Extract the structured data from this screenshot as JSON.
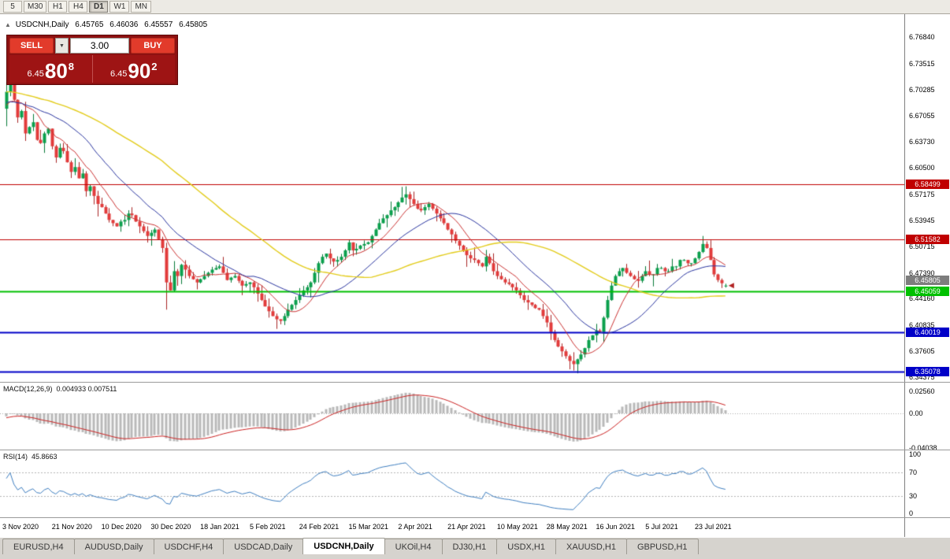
{
  "toolbar": {
    "periods": [
      {
        "label": "5",
        "active": false
      },
      {
        "label": "M30",
        "active": false
      },
      {
        "label": "H1",
        "active": false
      },
      {
        "label": "H4",
        "active": false
      },
      {
        "label": "D1",
        "active": true
      },
      {
        "label": "W1",
        "active": false
      },
      {
        "label": "MN",
        "active": false
      }
    ]
  },
  "chart_header": {
    "collapse_icon": "▲",
    "symbol": "USDCNH,Daily",
    "open": "6.45765",
    "high": "6.46036",
    "low": "6.45557",
    "close": "6.45805"
  },
  "trade_panel": {
    "sell_label": "SELL",
    "buy_label": "BUY",
    "volume": "3.00",
    "dropdown_icon": "▼",
    "sell_price": {
      "small": "6.45",
      "big": "80",
      "sup": "8"
    },
    "buy_price": {
      "small": "6.45",
      "big": "90",
      "sup": "2"
    }
  },
  "indicators_panel": {
    "macd_name": "MACD(12,26,9)",
    "macd_values": "0.004933 0.007511",
    "rsi_name": "RSI(14)",
    "rsi_value": "45.8663"
  },
  "price_axis": {
    "ticks": [
      "6.76840",
      "6.73515",
      "6.70285",
      "6.67055",
      "6.63730",
      "6.60500",
      "6.57175",
      "6.53945",
      "6.50715",
      "6.47390",
      "6.44160",
      "6.40835",
      "6.37605",
      "6.34375"
    ]
  },
  "macd_axis": {
    "ticks": [
      "0.02560",
      "0.00",
      "-0.04038"
    ]
  },
  "rsi_axis": {
    "ticks": [
      "100",
      "70",
      "30",
      "0"
    ]
  },
  "tabs": [
    {
      "label": "EURUSD,H4",
      "active": false
    },
    {
      "label": "AUDUSD,Daily",
      "active": false
    },
    {
      "label": "USDCHF,H4",
      "active": false
    },
    {
      "label": "USDCAD,Daily",
      "active": false
    },
    {
      "label": "USDCNH,Daily",
      "active": true
    },
    {
      "label": "UKOil,H4",
      "active": false
    },
    {
      "label": "DJ30,H1",
      "active": false
    },
    {
      "label": "USDX,H1",
      "active": false
    },
    {
      "label": "XAUUSD,H1",
      "active": false
    },
    {
      "label": "GBPUSD,H1",
      "active": false
    }
  ],
  "chart_data": {
    "type": "candlestick",
    "symbol": "USDCNH",
    "timeframe": "Daily",
    "title": "USDCNH,Daily 6.45765 6.46036 6.45557 6.45805",
    "last_candle": {
      "open": 6.45765,
      "high": 6.46036,
      "low": 6.45557,
      "close": 6.45805
    },
    "bid_price": 6.45805,
    "y_axis_range": [
      6.34375,
      6.7684
    ],
    "x_labels": [
      "3 Nov 2020",
      "21 Nov 2020",
      "10 Dec 2020",
      "30 Dec 2020",
      "18 Jan 2021",
      "5 Feb 2021",
      "24 Feb 2021",
      "15 Mar 2021",
      "2 Apr 2021",
      "21 Apr 2021",
      "10 May 2021",
      "28 May 2021",
      "16 Jun 2021",
      "5 Jul 2021",
      "23 Jul 2021"
    ],
    "x_label_step": 13,
    "closes": [
      6.7,
      6.718,
      6.69,
      6.668,
      6.676,
      6.648,
      6.656,
      6.662,
      6.64,
      6.636,
      6.648,
      6.654,
      6.632,
      6.618,
      6.63,
      6.626,
      6.612,
      6.6,
      6.606,
      6.592,
      6.598,
      6.576,
      6.582,
      6.57,
      6.56,
      6.556,
      6.548,
      6.54,
      6.536,
      6.532,
      6.538,
      6.54,
      6.548,
      6.546,
      6.538,
      6.532,
      6.526,
      6.52,
      6.524,
      6.528,
      6.516,
      6.505,
      6.462,
      6.452,
      6.476,
      6.47,
      6.484,
      6.478,
      6.47,
      6.466,
      6.462,
      6.466,
      6.47,
      6.474,
      6.478,
      6.48,
      6.482,
      6.474,
      6.465,
      6.468,
      6.47,
      6.464,
      6.458,
      6.46,
      6.462,
      6.456,
      6.448,
      6.44,
      6.432,
      6.426,
      6.42,
      6.416,
      6.414,
      6.42,
      6.428,
      6.434,
      6.44,
      6.446,
      6.452,
      6.456,
      6.462,
      6.474,
      6.486,
      6.494,
      6.498,
      6.492,
      6.488,
      6.49,
      6.494,
      6.502,
      6.512,
      6.502,
      6.504,
      6.508,
      6.51,
      6.512,
      6.52,
      6.528,
      6.536,
      6.542,
      6.546,
      6.552,
      6.556,
      6.562,
      6.568,
      6.572,
      6.566,
      6.56,
      6.554,
      6.552,
      6.556,
      6.56,
      6.554,
      6.548,
      6.542,
      6.536,
      6.528,
      6.522,
      6.514,
      6.508,
      6.502,
      6.496,
      6.492,
      6.49,
      6.486,
      6.482,
      6.494,
      6.486,
      6.476,
      6.47,
      6.466,
      6.462,
      6.46,
      6.456,
      6.452,
      6.446,
      6.44,
      6.437,
      6.434,
      6.43,
      6.428,
      6.42,
      6.412,
      6.4,
      6.39,
      6.382,
      6.376,
      6.37,
      6.364,
      6.36,
      6.366,
      6.372,
      6.38,
      6.39,
      6.396,
      6.402,
      6.4,
      6.418,
      6.44,
      6.458,
      6.47,
      6.476,
      6.48,
      6.474,
      6.47,
      6.466,
      6.464,
      6.47,
      6.476,
      6.472,
      6.472,
      6.48,
      6.48,
      6.476,
      6.476,
      6.482,
      6.482,
      6.49,
      6.49,
      6.486,
      6.486,
      6.492,
      6.5,
      6.51,
      6.505,
      6.49,
      6.472,
      6.465,
      6.461,
      6.458
    ],
    "wick_overrides": {
      "0": {
        "h": 6.712,
        "l": 6.657
      },
      "1": {
        "h": 6.733
      },
      "42": {
        "l": 6.428
      },
      "71": {
        "l": 6.404
      },
      "105": {
        "h": 6.582
      },
      "149": {
        "l": 6.352
      },
      "183": {
        "h": 6.52
      }
    },
    "pre_history": {
      "count": 60,
      "start": 6.726,
      "end": 6.678
    },
    "noise": {
      "seed": 42,
      "wick": 0.008
    },
    "horizontal_levels": [
      {
        "value": 6.58499,
        "color": "#c00000",
        "width": 1,
        "type": "resistance"
      },
      {
        "value": 6.51582,
        "color": "#c00000",
        "width": 1,
        "type": "resistance"
      },
      {
        "value": 6.45059,
        "color": "#00c000",
        "width": 2,
        "type": "level"
      },
      {
        "value": 6.40019,
        "color": "#0000c8",
        "width": 2,
        "type": "support"
      },
      {
        "value": 6.35078,
        "color": "#0000c8",
        "width": 2,
        "type": "support"
      }
    ],
    "bid_badge_color": "#7d7d7d",
    "candle_colors": {
      "up": "#0ba04d",
      "up_border": "#067a38",
      "down": "#e23b3b",
      "down_border": "#a82424"
    },
    "moving_averages": [
      {
        "period": 9,
        "color": "#cc3333",
        "width": 1
      },
      {
        "period": 22,
        "color": "#2a35a0",
        "width": 1
      },
      {
        "period": 55,
        "color": "#e3cc1a",
        "width": 1.4
      }
    ],
    "indicators": {
      "macd": {
        "fast": 12,
        "slow": 26,
        "signal": 9,
        "value": 0.004933,
        "signal_value": 0.007511,
        "axis_ticks": [
          0.0256,
          0.0,
          -0.04038
        ],
        "histogram_color": "#b9b9b9",
        "signal_color": "#cc2222"
      },
      "rsi": {
        "period": 14,
        "value": 45.8663,
        "axis_ticks": [
          100,
          70,
          30,
          0
        ],
        "levels": [
          70,
          30
        ],
        "line_color": "#3f7fc1"
      }
    }
  }
}
